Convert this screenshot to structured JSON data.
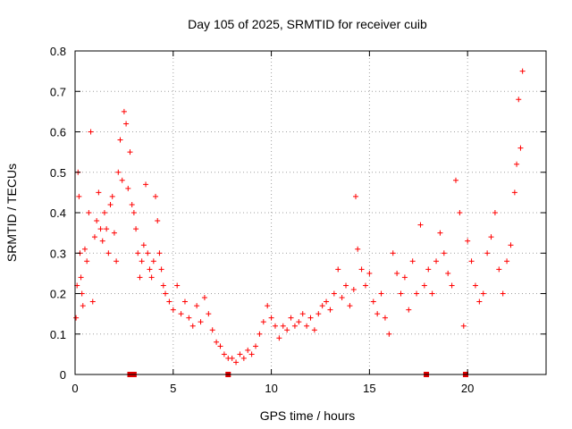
{
  "chart_data": {
    "type": "scatter",
    "title": "Day 105 of 2025, SRMTID for receiver cuib",
    "xlabel": "GPS time / hours",
    "ylabel": "SRMTID / TECUs",
    "xlim": [
      0,
      24
    ],
    "ylim": [
      0,
      0.8
    ],
    "xticks": [
      "0",
      "5",
      "10",
      "15",
      "20"
    ],
    "yticks": [
      "0",
      "0.1",
      "0.2",
      "0.3",
      "0.4",
      "0.5",
      "0.6",
      "0.7",
      "0.8"
    ],
    "grid": true,
    "marker": "+",
    "color": "#ff0000",
    "series": [
      {
        "name": "SRMTID",
        "points": [
          [
            0.05,
            0.14
          ],
          [
            0.1,
            0.22
          ],
          [
            0.15,
            0.5
          ],
          [
            0.2,
            0.44
          ],
          [
            0.25,
            0.3
          ],
          [
            0.3,
            0.24
          ],
          [
            0.35,
            0.2
          ],
          [
            0.4,
            0.17
          ],
          [
            0.5,
            0.31
          ],
          [
            0.6,
            0.28
          ],
          [
            0.7,
            0.4
          ],
          [
            0.8,
            0.6
          ],
          [
            0.9,
            0.18
          ],
          [
            1.0,
            0.34
          ],
          [
            1.1,
            0.38
          ],
          [
            1.2,
            0.45
          ],
          [
            1.3,
            0.36
          ],
          [
            1.4,
            0.33
          ],
          [
            1.5,
            0.4
          ],
          [
            1.6,
            0.36
          ],
          [
            1.7,
            0.3
          ],
          [
            1.8,
            0.42
          ],
          [
            1.9,
            0.44
          ],
          [
            2.0,
            0.35
          ],
          [
            2.1,
            0.28
          ],
          [
            2.2,
            0.5
          ],
          [
            2.3,
            0.58
          ],
          [
            2.4,
            0.48
          ],
          [
            2.5,
            0.65
          ],
          [
            2.6,
            0.62
          ],
          [
            2.7,
            0.46
          ],
          [
            2.8,
            0.55
          ],
          [
            2.9,
            0.42
          ],
          [
            3.0,
            0.4
          ],
          [
            3.1,
            0.36
          ],
          [
            3.2,
            0.3
          ],
          [
            3.3,
            0.24
          ],
          [
            3.4,
            0.28
          ],
          [
            3.5,
            0.32
          ],
          [
            3.6,
            0.47
          ],
          [
            3.7,
            0.3
          ],
          [
            3.8,
            0.26
          ],
          [
            3.9,
            0.24
          ],
          [
            4.0,
            0.28
          ],
          [
            4.1,
            0.44
          ],
          [
            4.2,
            0.38
          ],
          [
            4.3,
            0.3
          ],
          [
            4.4,
            0.26
          ],
          [
            4.5,
            0.22
          ],
          [
            4.6,
            0.2
          ],
          [
            4.8,
            0.18
          ],
          [
            5.0,
            0.16
          ],
          [
            5.2,
            0.22
          ],
          [
            5.4,
            0.15
          ],
          [
            5.6,
            0.18
          ],
          [
            5.8,
            0.14
          ],
          [
            6.0,
            0.12
          ],
          [
            6.2,
            0.17
          ],
          [
            6.4,
            0.13
          ],
          [
            6.6,
            0.19
          ],
          [
            6.8,
            0.15
          ],
          [
            7.0,
            0.11
          ],
          [
            7.2,
            0.08
          ],
          [
            7.4,
            0.07
          ],
          [
            7.6,
            0.05
          ],
          [
            7.8,
            0.04
          ],
          [
            8.0,
            0.04
          ],
          [
            8.2,
            0.03
          ],
          [
            8.4,
            0.05
          ],
          [
            8.6,
            0.04
          ],
          [
            8.8,
            0.06
          ],
          [
            9.0,
            0.05
          ],
          [
            9.2,
            0.07
          ],
          [
            9.4,
            0.1
          ],
          [
            9.6,
            0.13
          ],
          [
            9.8,
            0.17
          ],
          [
            10.0,
            0.14
          ],
          [
            10.2,
            0.12
          ],
          [
            10.4,
            0.09
          ],
          [
            10.6,
            0.12
          ],
          [
            10.8,
            0.11
          ],
          [
            11.0,
            0.14
          ],
          [
            11.2,
            0.12
          ],
          [
            11.4,
            0.13
          ],
          [
            11.6,
            0.15
          ],
          [
            11.8,
            0.12
          ],
          [
            12.0,
            0.14
          ],
          [
            12.2,
            0.11
          ],
          [
            12.4,
            0.15
          ],
          [
            12.6,
            0.17
          ],
          [
            12.8,
            0.18
          ],
          [
            13.0,
            0.16
          ],
          [
            13.2,
            0.2
          ],
          [
            13.4,
            0.26
          ],
          [
            13.6,
            0.19
          ],
          [
            13.8,
            0.22
          ],
          [
            14.0,
            0.17
          ],
          [
            14.2,
            0.21
          ],
          [
            14.3,
            0.44
          ],
          [
            14.4,
            0.31
          ],
          [
            14.6,
            0.26
          ],
          [
            14.8,
            0.22
          ],
          [
            15.0,
            0.25
          ],
          [
            15.2,
            0.18
          ],
          [
            15.4,
            0.15
          ],
          [
            15.6,
            0.2
          ],
          [
            15.8,
            0.14
          ],
          [
            16.0,
            0.1
          ],
          [
            16.2,
            0.3
          ],
          [
            16.4,
            0.25
          ],
          [
            16.6,
            0.2
          ],
          [
            16.8,
            0.24
          ],
          [
            17.0,
            0.16
          ],
          [
            17.2,
            0.28
          ],
          [
            17.4,
            0.2
          ],
          [
            17.6,
            0.37
          ],
          [
            17.8,
            0.22
          ],
          [
            18.0,
            0.26
          ],
          [
            18.2,
            0.2
          ],
          [
            18.4,
            0.28
          ],
          [
            18.6,
            0.35
          ],
          [
            18.8,
            0.3
          ],
          [
            19.0,
            0.25
          ],
          [
            19.2,
            0.22
          ],
          [
            19.4,
            0.48
          ],
          [
            19.6,
            0.4
          ],
          [
            19.8,
            0.12
          ],
          [
            20.0,
            0.33
          ],
          [
            20.2,
            0.28
          ],
          [
            20.4,
            0.22
          ],
          [
            20.6,
            0.18
          ],
          [
            20.8,
            0.2
          ],
          [
            21.0,
            0.3
          ],
          [
            21.2,
            0.34
          ],
          [
            21.4,
            0.4
          ],
          [
            21.6,
            0.26
          ],
          [
            21.8,
            0.2
          ],
          [
            22.0,
            0.28
          ],
          [
            22.2,
            0.32
          ],
          [
            22.4,
            0.45
          ],
          [
            22.5,
            0.52
          ],
          [
            22.6,
            0.68
          ],
          [
            22.7,
            0.56
          ],
          [
            22.8,
            0.75
          ]
        ]
      }
    ],
    "axis_markers": [
      2.8,
      2.9,
      3.0,
      7.8,
      17.9,
      19.9
    ]
  }
}
